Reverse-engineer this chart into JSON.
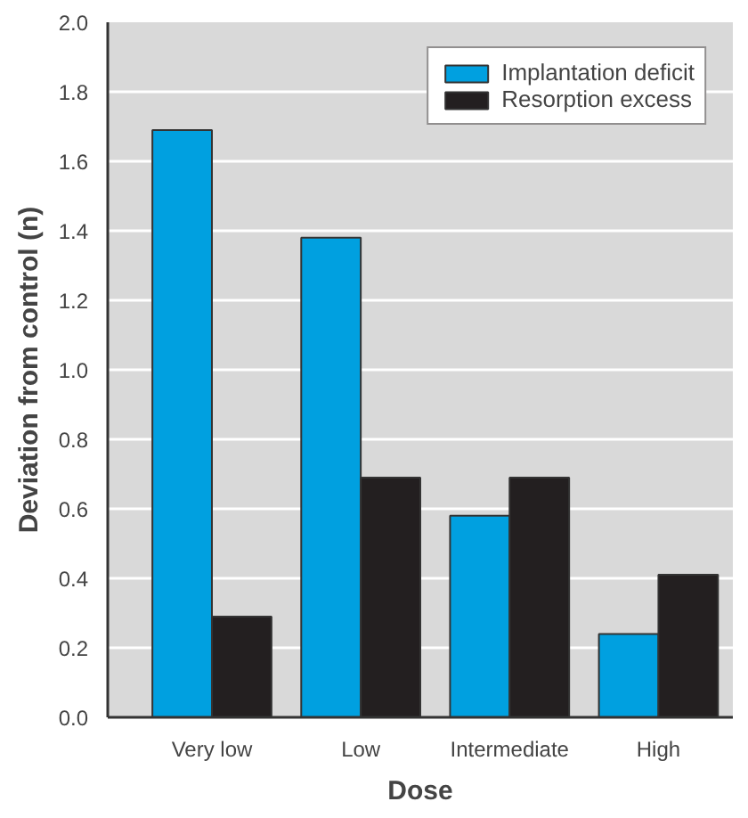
{
  "chart_data": {
    "type": "bar",
    "xlabel": "Dose",
    "ylabel": "Deviation from control (n)",
    "categories": [
      "Very low",
      "Low",
      "Intermediate",
      "High"
    ],
    "series": [
      {
        "name": "Implantation deficit",
        "color": "#00a0e0",
        "values": [
          1.69,
          1.38,
          0.58,
          0.24
        ]
      },
      {
        "name": "Resorption excess",
        "color": "#231f20",
        "values": [
          0.29,
          0.69,
          0.69,
          0.41
        ]
      }
    ],
    "ylim": [
      0,
      2.0
    ],
    "yticks": [
      {
        "value": 0,
        "label": "0.0"
      },
      0.2,
      0.4,
      0.6,
      0.8,
      {
        "value": 1,
        "label": "1.0"
      },
      1.2,
      1.4,
      1.6,
      1.8,
      {
        "value": 2,
        "label": "2.0"
      }
    ],
    "grid": "y",
    "legend": "top right"
  }
}
